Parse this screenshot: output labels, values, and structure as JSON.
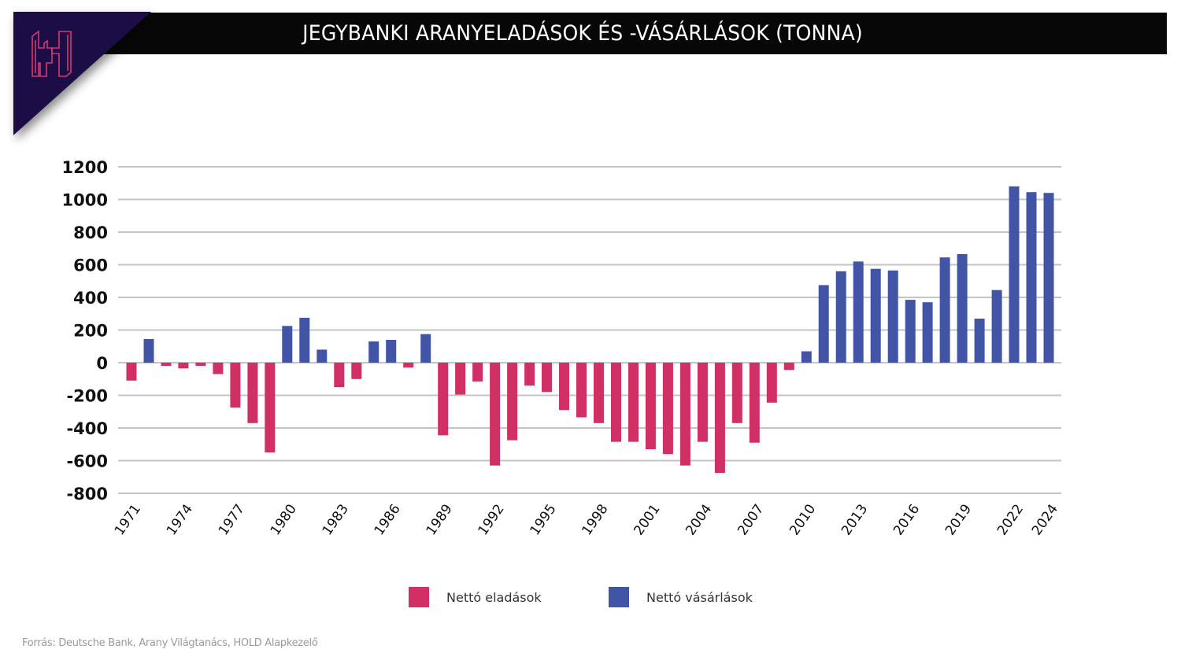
{
  "header": {
    "title": "JEGYBANKI ARANYELADÁSOK ÉS -VÁSÁRLÁSOK (TONNA)",
    "logo_icon": "h-logo-icon",
    "colors": {
      "bar": "#070708",
      "logo_bg": "#1b1147",
      "logo_stroke": "#d43a6e"
    }
  },
  "chart_data": {
    "type": "bar",
    "title": "JEGYBANKI ARANYELADÁSOK ÉS -VÁSÁRLÁSOK (TONNA)",
    "xlabel": "",
    "ylabel": "",
    "ylim": [
      -800,
      1200
    ],
    "yticks": [
      1200,
      1000,
      800,
      600,
      400,
      200,
      0,
      -200,
      -400,
      -600,
      -800
    ],
    "xtick_labels": [
      "1971",
      "1974",
      "1977",
      "1980",
      "1983",
      "1986",
      "1989",
      "1992",
      "1995",
      "1998",
      "2001",
      "2004",
      "2007",
      "2010",
      "2013",
      "2016",
      "2019",
      "2022",
      "2024"
    ],
    "grid": true,
    "legend_position": "bottom-center",
    "categories": [
      "1971",
      "1972",
      "1973",
      "1974",
      "1975",
      "1976",
      "1977",
      "1978",
      "1979",
      "1980",
      "1981",
      "1982",
      "1983",
      "1984",
      "1985",
      "1986",
      "1987",
      "1988",
      "1989",
      "1990",
      "1991",
      "1992",
      "1993",
      "1994",
      "1995",
      "1996",
      "1997",
      "1998",
      "1999",
      "2000",
      "2001",
      "2002",
      "2003",
      "2004",
      "2005",
      "2006",
      "2007",
      "2008",
      "2009",
      "2010",
      "2011",
      "2012",
      "2013",
      "2014",
      "2015",
      "2016",
      "2017",
      "2018",
      "2019",
      "2020",
      "2021",
      "2022",
      "2023",
      "2024"
    ],
    "values": [
      -110,
      145,
      -20,
      -35,
      -20,
      -70,
      -275,
      -370,
      -550,
      225,
      275,
      80,
      -150,
      -100,
      130,
      140,
      -30,
      175,
      -445,
      -195,
      -115,
      -630,
      -475,
      -140,
      -180,
      -290,
      -335,
      -370,
      -485,
      -485,
      -530,
      -560,
      -630,
      -485,
      -675,
      -370,
      -490,
      -245,
      -45,
      70,
      475,
      560,
      620,
      575,
      565,
      385,
      370,
      645,
      665,
      270,
      445,
      1080,
      1045,
      1040
    ],
    "series": [
      {
        "name": "Nettó eladások",
        "color": "#d13065",
        "rule": "value < 0"
      },
      {
        "name": "Nettó vásárlások",
        "color": "#4254a6",
        "rule": "value >= 0"
      }
    ]
  },
  "legend": {
    "items": [
      {
        "label": "Nettó eladások",
        "color": "#d13065"
      },
      {
        "label": "Nettó vásárlások",
        "color": "#4254a6"
      }
    ]
  },
  "footer": {
    "source": "Forrás: Deutsche Bank,  Arany Világtanács, HOLD Alapkezelő"
  }
}
